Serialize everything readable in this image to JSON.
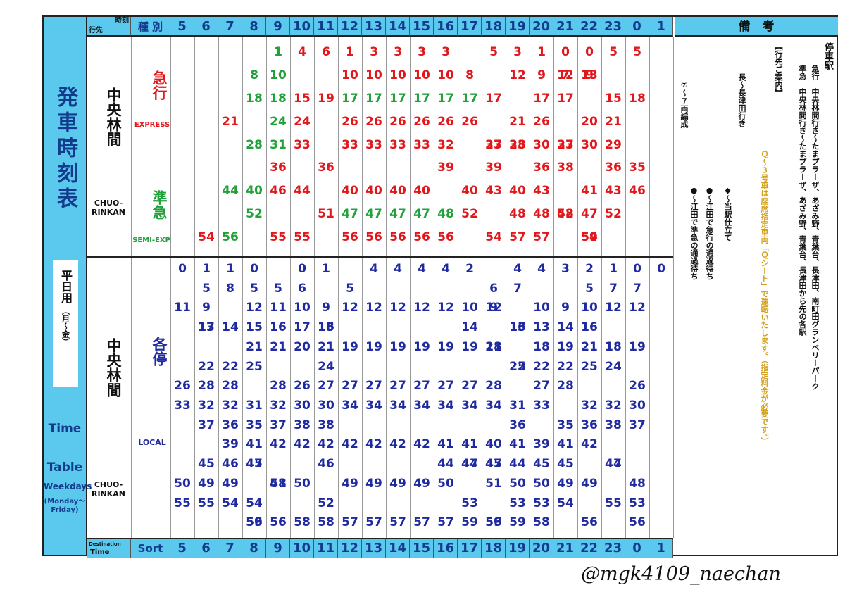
{
  "side": {
    "title": "発車時刻表",
    "weekday_label": "平日用",
    "weekday_sub": "（月〜金）",
    "time_en": "Time",
    "table_en": "Table",
    "weekdays_en": "Weekdays",
    "monfri_en": "(Monday〜 Friday)"
  },
  "header": {
    "corner_top": "時刻",
    "corner_bottom": "行先",
    "kind_label": "種 別",
    "hours": [
      "5",
      "6",
      "7",
      "8",
      "9",
      "10",
      "11",
      "12",
      "13",
      "14",
      "15",
      "16",
      "17",
      "18",
      "19",
      "20",
      "21",
      "22",
      "23",
      "0",
      "1"
    ],
    "remarks_title": "備　考"
  },
  "footer": {
    "corner_top": "Destination",
    "corner_bottom": "Time",
    "kind_label": "Sort"
  },
  "upper": {
    "dest_kanji": "中央林間",
    "dest_roman": "CHUO-RINKAN",
    "express_kanji": "急行",
    "express_en": "EXPRESS",
    "semi_kanji": "準急",
    "semi_en": "SEMI-EXP."
  },
  "lower": {
    "dest_kanji": "中央林間",
    "dest_roman": "CHUO-RINKAN",
    "local_kanji": "各停",
    "local_en": "LOCAL"
  },
  "express_times": [
    [],
    [
      {
        "m": "54",
        "c": "r"
      }
    ],
    [
      {
        "m": "21",
        "c": "r"
      },
      {
        "m": "44",
        "c": "g"
      },
      {
        "m": "56",
        "c": "g"
      }
    ],
    [
      {
        "m": "8",
        "c": "g"
      },
      {
        "m": "18",
        "c": "g"
      },
      {
        "m": "28",
        "c": "g"
      },
      {
        "m": "40",
        "c": "g"
      },
      {
        "m": "52",
        "c": "g"
      }
    ],
    [
      {
        "m": "1",
        "c": "g"
      },
      {
        "m": "10",
        "c": "g"
      },
      {
        "m": "18",
        "c": "g"
      },
      {
        "m": "24",
        "c": "g"
      },
      {
        "m": "31",
        "c": "g"
      },
      {
        "m": "36",
        "c": "r"
      },
      {
        "m": "46",
        "c": "r"
      },
      {
        "m": "55",
        "c": "r"
      }
    ],
    [
      {
        "m": "4",
        "c": "r"
      },
      {
        "m": "15",
        "c": "r"
      },
      {
        "m": "24",
        "c": "r"
      },
      {
        "m": "33",
        "c": "r"
      },
      {
        "m": "44",
        "c": "r"
      },
      {
        "m": "55",
        "c": "r"
      }
    ],
    [
      {
        "m": "6",
        "c": "r"
      },
      {
        "m": "19",
        "c": "r"
      },
      {
        "m": "36",
        "c": "r"
      },
      {
        "m": "51",
        "c": "r"
      }
    ],
    [
      {
        "m": "1",
        "c": "r"
      },
      {
        "m": "10",
        "c": "r"
      },
      {
        "m": "17",
        "c": "g"
      },
      {
        "m": "26",
        "c": "r"
      },
      {
        "m": "33",
        "c": "r"
      },
      {
        "m": "40",
        "c": "r"
      },
      {
        "m": "47",
        "c": "g"
      },
      {
        "m": "56",
        "c": "r"
      }
    ],
    [
      {
        "m": "3",
        "c": "r"
      },
      {
        "m": "10",
        "c": "r"
      },
      {
        "m": "17",
        "c": "g"
      },
      {
        "m": "26",
        "c": "r"
      },
      {
        "m": "33",
        "c": "r"
      },
      {
        "m": "40",
        "c": "r"
      },
      {
        "m": "47",
        "c": "g"
      },
      {
        "m": "56",
        "c": "r"
      }
    ],
    [
      {
        "m": "3",
        "c": "r"
      },
      {
        "m": "10",
        "c": "r"
      },
      {
        "m": "17",
        "c": "g"
      },
      {
        "m": "26",
        "c": "r"
      },
      {
        "m": "33",
        "c": "r"
      },
      {
        "m": "40",
        "c": "r"
      },
      {
        "m": "47",
        "c": "g"
      },
      {
        "m": "56",
        "c": "r"
      }
    ],
    [
      {
        "m": "3",
        "c": "r"
      },
      {
        "m": "10",
        "c": "r"
      },
      {
        "m": "17",
        "c": "g"
      },
      {
        "m": "26",
        "c": "r"
      },
      {
        "m": "33",
        "c": "r"
      },
      {
        "m": "40",
        "c": "r"
      },
      {
        "m": "47",
        "c": "g"
      },
      {
        "m": "56",
        "c": "r"
      }
    ],
    [
      {
        "m": "3",
        "c": "r"
      },
      {
        "m": "10",
        "c": "r"
      },
      {
        "m": "17",
        "c": "g"
      },
      {
        "m": "26",
        "c": "r"
      },
      {
        "m": "32",
        "c": "r"
      },
      {
        "m": "39",
        "c": "r"
      },
      {
        "m": "48",
        "c": "g"
      },
      {
        "m": "56",
        "c": "r"
      }
    ],
    [
      {
        "m": "8",
        "c": "r"
      },
      {
        "m": "17",
        "c": "g"
      },
      {
        "m": "26",
        "c": "r"
      },
      {
        "m": "40",
        "c": "r"
      },
      {
        "m": "52",
        "c": "r"
      }
    ],
    [
      {
        "m": "5",
        "c": "r"
      },
      {
        "m": "17",
        "c": "r"
      },
      {
        "m": "27",
        "c": "r"
      },
      {
        "m": "33",
        "c": "r"
      },
      {
        "m": "39",
        "c": "r"
      },
      {
        "m": "43",
        "c": "r"
      },
      {
        "m": "54",
        "c": "r"
      }
    ],
    [
      {
        "m": "3",
        "c": "r"
      },
      {
        "m": "12",
        "c": "r"
      },
      {
        "m": "21",
        "c": "r"
      },
      {
        "m": "28",
        "c": "r"
      },
      {
        "m": "33",
        "c": "r"
      },
      {
        "m": "40",
        "c": "r"
      },
      {
        "m": "48",
        "c": "r"
      },
      {
        "m": "57",
        "c": "r"
      }
    ],
    [
      {
        "m": "1",
        "c": "r"
      },
      {
        "m": "9",
        "c": "r"
      },
      {
        "m": "17",
        "c": "r"
      },
      {
        "m": "26",
        "c": "r"
      },
      {
        "m": "30",
        "c": "r"
      },
      {
        "m": "36",
        "c": "r"
      },
      {
        "m": "43",
        "c": "r"
      },
      {
        "m": "48",
        "c": "r"
      },
      {
        "m": "57",
        "c": "r"
      }
    ],
    [
      {
        "m": "0",
        "c": "r"
      },
      {
        "m": "7",
        "c": "r"
      },
      {
        "m": "12",
        "c": "r"
      },
      {
        "m": "17",
        "c": "r"
      },
      {
        "m": "27",
        "c": "r"
      },
      {
        "m": "33",
        "c": "r"
      },
      {
        "m": "38",
        "c": "r"
      },
      {
        "m": "48",
        "c": "r"
      },
      {
        "m": "52",
        "c": "r"
      }
    ],
    [
      {
        "m": "0",
        "c": "r"
      },
      {
        "m": "9",
        "c": "r"
      },
      {
        "m": "13",
        "c": "r"
      },
      {
        "m": "20",
        "c": "r"
      },
      {
        "m": "30",
        "c": "r"
      },
      {
        "m": "41",
        "c": "r"
      },
      {
        "m": "47",
        "c": "r"
      },
      {
        "m": "54",
        "c": "r"
      },
      {
        "m": "59",
        "c": "r"
      }
    ],
    [
      {
        "m": "5",
        "c": "r"
      },
      {
        "m": "15",
        "c": "r"
      },
      {
        "m": "21",
        "c": "r"
      },
      {
        "m": "29",
        "c": "r"
      },
      {
        "m": "36",
        "c": "r"
      },
      {
        "m": "43",
        "c": "r"
      },
      {
        "m": "52",
        "c": "r"
      }
    ],
    [
      {
        "m": "5",
        "c": "r"
      },
      {
        "m": "18",
        "c": "r"
      },
      {
        "m": "35",
        "c": "r"
      },
      {
        "m": "46",
        "c": "r"
      }
    ],
    []
  ],
  "local_times": [
    [
      "0",
      "11",
      "26",
      "33",
      "50",
      "55"
    ],
    [
      "1",
      "5",
      "9",
      "13",
      "17",
      "22",
      "28",
      "32",
      "37",
      "45",
      "49",
      "55"
    ],
    [
      "1",
      "8",
      "14",
      "22",
      "28",
      "32",
      "36",
      "39",
      "46",
      "49",
      "54"
    ],
    [
      "0",
      "5",
      "12",
      "15",
      "21",
      "25",
      "31",
      "35",
      "41",
      "45",
      "47",
      "54",
      "56",
      "59"
    ],
    [
      "5",
      "11",
      "16",
      "21",
      "28",
      "32",
      "37",
      "42",
      "48",
      "51",
      "56"
    ],
    [
      "0",
      "6",
      "10",
      "17",
      "20",
      "26",
      "30",
      "38",
      "42",
      "50",
      "58"
    ],
    [
      "1",
      "9",
      "13",
      "16",
      "21",
      "24",
      "27",
      "30",
      "38",
      "42",
      "46",
      "52",
      "58"
    ],
    [
      "5",
      "12",
      "19",
      "27",
      "34",
      "42",
      "49",
      "57"
    ],
    [
      "4",
      "12",
      "19",
      "27",
      "34",
      "42",
      "49",
      "57"
    ],
    [
      "4",
      "12",
      "19",
      "27",
      "34",
      "42",
      "49",
      "57"
    ],
    [
      "4",
      "12",
      "19",
      "27",
      "34",
      "42",
      "49",
      "57"
    ],
    [
      "4",
      "12",
      "19",
      "27",
      "34",
      "41",
      "44",
      "50",
      "57"
    ],
    [
      "2",
      "10",
      "14",
      "19",
      "27",
      "34",
      "41",
      "44",
      "47",
      "53",
      "59"
    ],
    [
      "6",
      "9",
      "12",
      "18",
      "21",
      "28",
      "34",
      "40",
      "45",
      "47",
      "51",
      "56",
      "59"
    ],
    [
      "4",
      "7",
      "13",
      "16",
      "22",
      "25",
      "31",
      "36",
      "41",
      "44",
      "50",
      "53",
      "59"
    ],
    [
      "4",
      "10",
      "13",
      "18",
      "22",
      "27",
      "33",
      "39",
      "45",
      "50",
      "53",
      "58"
    ],
    [
      "3",
      "9",
      "14",
      "19",
      "22",
      "28",
      "35",
      "41",
      "45",
      "49",
      "54"
    ],
    [
      "2",
      "5",
      "10",
      "16",
      "21",
      "25",
      "32",
      "36",
      "42",
      "49",
      "56"
    ],
    [
      "1",
      "7",
      "12",
      "18",
      "24",
      "32",
      "38",
      "44",
      "47",
      "55"
    ],
    [
      "0",
      "7",
      "12",
      "19",
      "26",
      "30",
      "37",
      "48",
      "53",
      "56"
    ],
    [
      "0"
    ]
  ],
  "remarks": {
    "stops_title": "停車駅",
    "exp_stops": "急行　中央林間行き〜たまプラーザ、あざみ野、青葉台、長津田、南町田グランベリーパーク",
    "semi_stops": "準急　中央林間行き〜たまプラーザ、あざみ野、青葉台、長津田から先の各駅",
    "guide_title": "【行先ご案内】",
    "q_note": "Ｑ〜３号車は座席指定車両「Ｑシート」で運転いたします。（指定料金が必要です。）",
    "naga": "長〜長津田行き",
    "diamond": "◆〜当駅仕立て",
    "seven": "⑦〜７両編成",
    "red_dot": "●〜江田で急行の通過待ち",
    "green_dot": "●〜江田で準急の通過待ち"
  },
  "credit": "@mgk4109_naechan",
  "colors": {
    "header_bg": "#5bc8ee",
    "express": "#e0171b",
    "semi": "#22a03a",
    "local": "#1f2aa0"
  }
}
